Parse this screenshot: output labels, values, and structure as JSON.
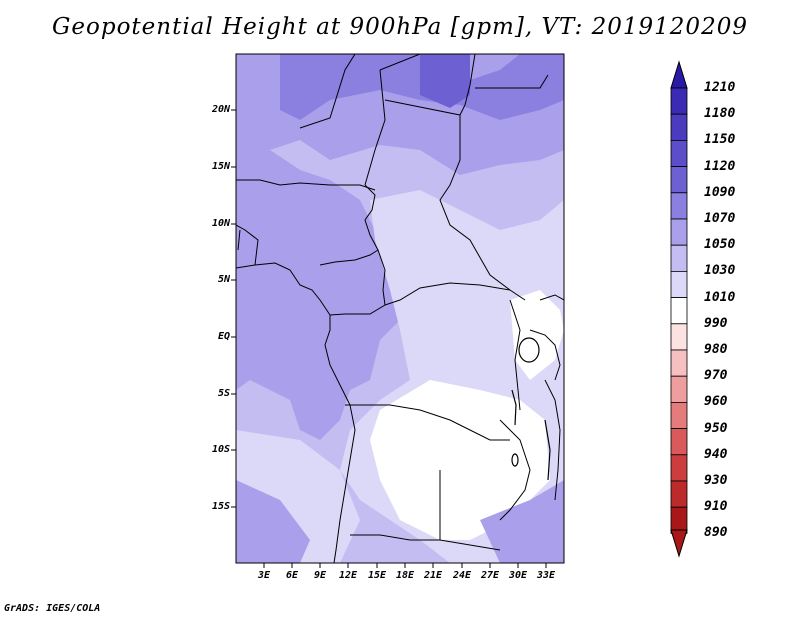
{
  "title": "Geopotential Height at 900hPa [gpm], VT: 2019120209",
  "credit": "GrADS: IGES/COLA",
  "lat_labels": [
    "20N",
    "15N",
    "10N",
    "5N",
    "EQ",
    "5S",
    "10S",
    "15S"
  ],
  "lon_labels": [
    "3E",
    "6E",
    "9E",
    "12E",
    "15E",
    "18E",
    "21E",
    "24E",
    "27E",
    "30E",
    "33E"
  ],
  "colorbar": {
    "levels": [
      "1210",
      "1180",
      "1150",
      "1120",
      "1090",
      "1070",
      "1050",
      "1030",
      "1010",
      "990",
      "980",
      "970",
      "960",
      "950",
      "940",
      "930",
      "910",
      "890"
    ],
    "colors": [
      "#2a1aa8",
      "#3a2ab4",
      "#4b3bbf",
      "#5c4dc9",
      "#6d60d3",
      "#8b7fe0",
      "#a99fea",
      "#c3bdf2",
      "#dcd9f8",
      "#ffffff",
      "#fde2e2",
      "#f6c0c0",
      "#ee9e9e",
      "#e47c7c",
      "#d95a5a",
      "#cc3e3e",
      "#bd2a2a",
      "#a81818"
    ]
  },
  "legend_colors": {
    "1050_1070": "#a99fea",
    "1030_1050": "#c3bdf2",
    "1010_1030": "#dcd9f8",
    "990_1010": "#ffffff",
    "1070_1090": "#8b7fe0"
  }
}
